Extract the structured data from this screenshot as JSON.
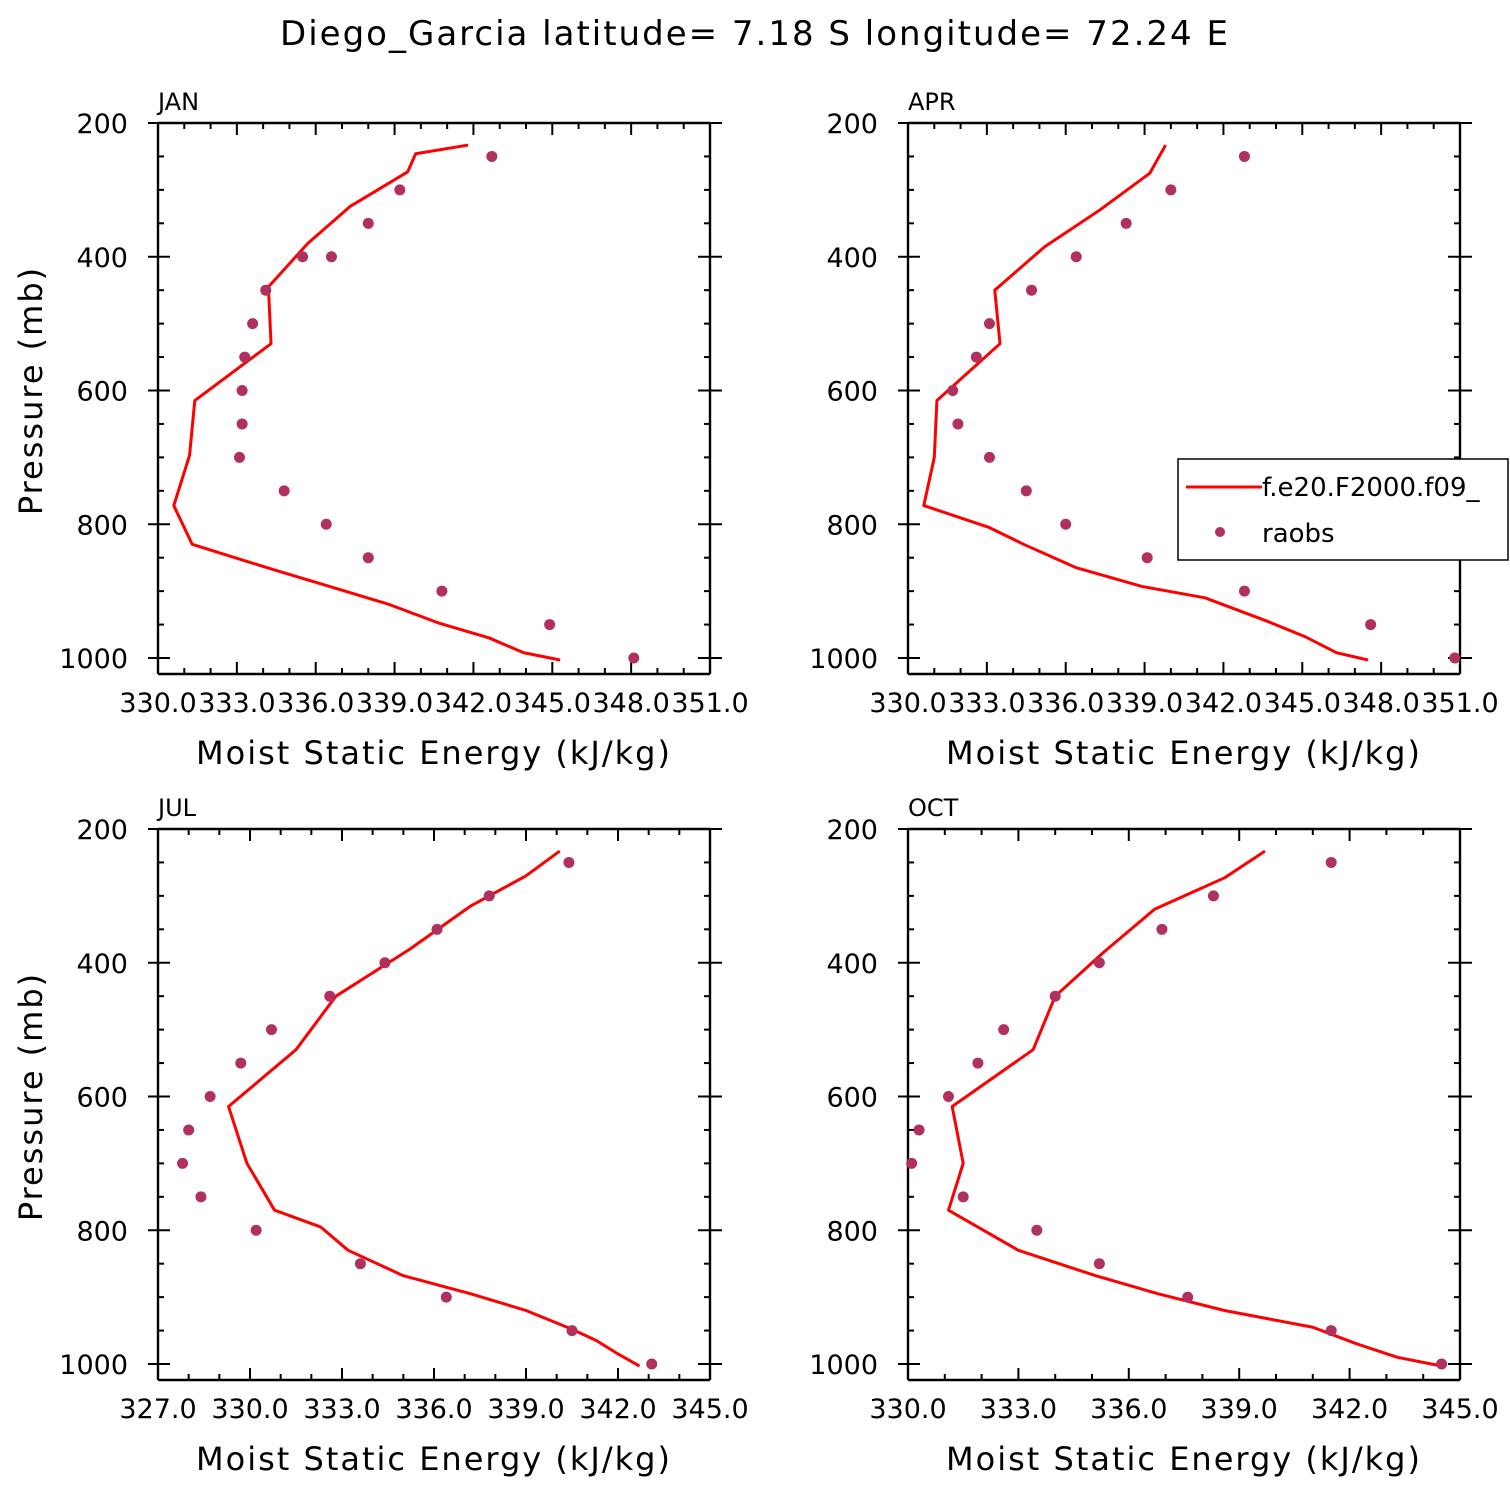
{
  "figure": {
    "title": "Diego_Garcia  latitude= 7.18 S longitude= 72.24 E"
  },
  "legend": {
    "model_label": "f.e20.F2000.f09_",
    "obs_label": "raobs"
  },
  "colors": {
    "model": "#ff0000",
    "obs": "#b03060",
    "axis": "#000000"
  },
  "chart_data": [
    {
      "type": "line",
      "panel": "JAN",
      "title": "JAN",
      "xlabel": "Moist Static Energy (kJ/kg)",
      "ylabel": "Pressure (mb)",
      "xlim": [
        330,
        351
      ],
      "ylim": [
        1000,
        200
      ],
      "y_reversed": true,
      "xticks": [
        330,
        333,
        336,
        339,
        342,
        345,
        348,
        351
      ],
      "xticklabels": [
        "330.0",
        "333.0",
        "336.0",
        "339.0",
        "342.0",
        "345.0",
        "348.0",
        "351.0"
      ],
      "yticks": [
        200,
        400,
        600,
        800,
        1000
      ],
      "yticklabels": [
        "200",
        "400",
        "600",
        "800",
        "1000"
      ],
      "series": [
        {
          "name": "f.e20.F2000.f09_",
          "kind": "line",
          "x": [
            345.3,
            343.9,
            342.6,
            340.7,
            338.8,
            336.7,
            334.4,
            331.3,
            330.6,
            331.2,
            331.4,
            334.3,
            334.2,
            335.7,
            337.3,
            339.5,
            339.8,
            341.8
          ],
          "y": [
            1003,
            992,
            970,
            948,
            920,
            895,
            868,
            830,
            772,
            697,
            615,
            530,
            445,
            380,
            325,
            273,
            246,
            233
          ]
        },
        {
          "name": "raobs",
          "kind": "scatter",
          "x": [
            348.1,
            344.9,
            340.8,
            338.0,
            336.4,
            334.8,
            333.1,
            333.2,
            333.2,
            333.3,
            333.6,
            334.1,
            335.5,
            336.6,
            338.0,
            339.2,
            342.7
          ],
          "y": [
            1000,
            950,
            900,
            850,
            800,
            750,
            700,
            650,
            600,
            550,
            500,
            450,
            400,
            400,
            350,
            300,
            250
          ]
        }
      ]
    },
    {
      "type": "line",
      "panel": "APR",
      "title": "APR",
      "xlabel": "Moist Static Energy (kJ/kg)",
      "ylabel": "",
      "xlim": [
        330,
        351
      ],
      "ylim": [
        1000,
        200
      ],
      "y_reversed": true,
      "xticks": [
        330,
        333,
        336,
        339,
        342,
        345,
        348,
        351
      ],
      "xticklabels": [
        "330.0",
        "333.0",
        "336.0",
        "339.0",
        "342.0",
        "345.0",
        "348.0",
        "351.0"
      ],
      "yticks": [
        200,
        400,
        600,
        800,
        1000
      ],
      "yticklabels": [
        "200",
        "400",
        "600",
        "800",
        "1000"
      ],
      "series": [
        {
          "name": "f.e20.F2000.f09_",
          "kind": "line",
          "x": [
            347.5,
            346.3,
            345.1,
            343.6,
            341.3,
            338.9,
            336.4,
            334.4,
            333.1,
            330.6,
            331.0,
            331.1,
            333.5,
            333.3,
            335.2,
            337.3,
            339.2,
            339.8
          ],
          "y": [
            1003,
            992,
            968,
            944,
            910,
            893,
            865,
            830,
            805,
            772,
            700,
            615,
            530,
            450,
            385,
            330,
            275,
            233
          ]
        },
        {
          "name": "raobs",
          "kind": "scatter",
          "x": [
            350.8,
            347.6,
            342.8,
            339.1,
            336.0,
            334.5,
            333.1,
            331.9,
            331.7,
            332.6,
            333.1,
            334.7,
            336.4,
            338.3,
            340.0,
            342.8
          ],
          "y": [
            1000,
            950,
            900,
            850,
            800,
            750,
            700,
            650,
            600,
            550,
            500,
            450,
            400,
            350,
            300,
            250
          ]
        }
      ]
    },
    {
      "type": "line",
      "panel": "JUL",
      "title": "JUL",
      "xlabel": "Moist Static Energy (kJ/kg)",
      "ylabel": "Pressure (mb)",
      "xlim": [
        327,
        345
      ],
      "ylim": [
        1000,
        200
      ],
      "y_reversed": true,
      "xticks": [
        327,
        330,
        333,
        336,
        339,
        342,
        345
      ],
      "xticklabels": [
        "327.0",
        "330.0",
        "333.0",
        "336.0",
        "339.0",
        "342.0",
        "345.0"
      ],
      "yticks": [
        200,
        400,
        600,
        800,
        1000
      ],
      "yticklabels": [
        "200",
        "400",
        "600",
        "800",
        "1000"
      ],
      "series": [
        {
          "name": "f.e20.F2000.f09_",
          "kind": "line",
          "x": [
            342.7,
            342.0,
            341.3,
            340.5,
            339.0,
            337.2,
            335.0,
            333.2,
            332.3,
            330.8,
            329.9,
            329.3,
            331.5,
            332.8,
            335.2,
            337.2,
            339.0,
            340.1
          ],
          "y": [
            1003,
            985,
            965,
            948,
            920,
            895,
            868,
            830,
            795,
            770,
            700,
            615,
            530,
            450,
            380,
            315,
            270,
            233
          ]
        },
        {
          "name": "raobs",
          "kind": "scatter",
          "x": [
            343.1,
            340.5,
            336.4,
            333.6,
            330.2,
            328.4,
            327.8,
            328.0,
            328.7,
            329.7,
            330.7,
            332.6,
            334.4,
            336.1,
            337.8,
            340.4
          ],
          "y": [
            1000,
            950,
            900,
            850,
            800,
            750,
            700,
            650,
            600,
            550,
            500,
            450,
            400,
            350,
            300,
            250
          ]
        }
      ]
    },
    {
      "type": "line",
      "panel": "OCT",
      "title": "OCT",
      "xlabel": "Moist Static Energy (kJ/kg)",
      "ylabel": "",
      "xlim": [
        330,
        345
      ],
      "ylim": [
        1000,
        200
      ],
      "y_reversed": true,
      "xticks": [
        330,
        333,
        336,
        339,
        342,
        345
      ],
      "xticklabels": [
        "330.0",
        "333.0",
        "336.0",
        "339.0",
        "342.0",
        "345.0"
      ],
      "yticks": [
        200,
        400,
        600,
        800,
        1000
      ],
      "yticklabels": [
        "200",
        "400",
        "600",
        "800",
        "1000"
      ],
      "series": [
        {
          "name": "f.e20.F2000.f09_",
          "kind": "line",
          "x": [
            344.5,
            343.3,
            342.2,
            341.0,
            338.6,
            336.8,
            335.1,
            333.0,
            331.1,
            331.5,
            331.2,
            333.4,
            334.0,
            335.3,
            336.7,
            338.6,
            339.7
          ],
          "y": [
            1003,
            990,
            970,
            945,
            920,
            895,
            868,
            830,
            770,
            700,
            615,
            530,
            450,
            385,
            320,
            273,
            233
          ]
        },
        {
          "name": "raobs",
          "kind": "scatter",
          "x": [
            344.5,
            341.5,
            337.6,
            335.2,
            333.5,
            331.5,
            330.1,
            330.3,
            331.1,
            331.9,
            332.6,
            334.0,
            335.2,
            336.9,
            338.3,
            341.5
          ],
          "y": [
            1000,
            950,
            900,
            850,
            800,
            750,
            700,
            650,
            600,
            550,
            500,
            450,
            400,
            350,
            300,
            250
          ]
        }
      ]
    }
  ]
}
